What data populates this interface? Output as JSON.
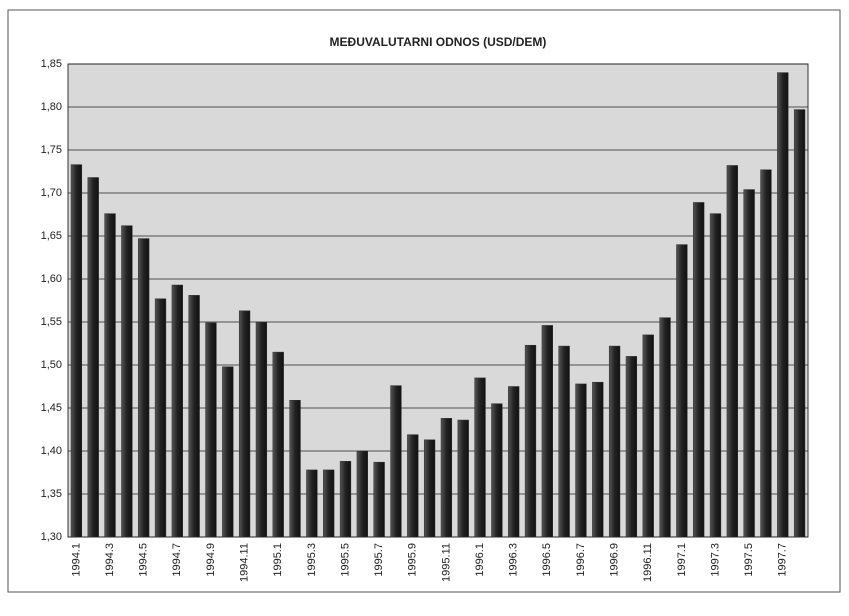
{
  "chart_data": {
    "type": "bar",
    "title": "MEĐUVALUTARNI ODNOS  (USD/DEM)",
    "categories": [
      "1994.1",
      null,
      "1994.3",
      null,
      "1994.5",
      null,
      "1994.7",
      null,
      "1994.9",
      null,
      "1994.11",
      null,
      "1995.1",
      null,
      "1995.3",
      null,
      "1995.5",
      null,
      "1995.7",
      null,
      "1995.9",
      null,
      "1995.11",
      null,
      "1996.1",
      null,
      "1996.3",
      null,
      "1996.5",
      null,
      "1996.7",
      null,
      "1996.9",
      null,
      "1996.11",
      null,
      "1997.1",
      null,
      "1997.3",
      null,
      "1997.5",
      null,
      "1997.7",
      null
    ],
    "values": [
      1.733,
      1.718,
      1.676,
      1.662,
      1.647,
      1.577,
      1.593,
      1.581,
      1.549,
      1.498,
      1.563,
      1.55,
      1.515,
      1.459,
      1.378,
      1.378,
      1.388,
      1.4,
      1.387,
      1.476,
      1.419,
      1.413,
      1.438,
      1.436,
      1.485,
      1.455,
      1.475,
      1.523,
      1.546,
      1.522,
      1.478,
      1.48,
      1.522,
      1.51,
      1.535,
      1.555,
      1.64,
      1.689,
      1.676,
      1.732,
      1.704,
      1.727,
      1.84,
      1.797
    ],
    "color": "#2e2e2e",
    "ylim": [
      1.3,
      1.85
    ],
    "yticks": [
      {
        "value": 1.3,
        "label": "1,30"
      },
      {
        "value": 1.35,
        "label": "1,35"
      },
      {
        "value": 1.4,
        "label": "1,40"
      },
      {
        "value": 1.45,
        "label": "1,45"
      },
      {
        "value": 1.5,
        "label": "1,50"
      },
      {
        "value": 1.55,
        "label": "1,55"
      },
      {
        "value": 1.6,
        "label": "1,60"
      },
      {
        "value": 1.65,
        "label": "1,65"
      },
      {
        "value": 1.7,
        "label": "1,70"
      },
      {
        "value": 1.75,
        "label": "1,75"
      },
      {
        "value": 1.8,
        "label": "1,80"
      },
      {
        "value": 1.85,
        "label": "1,85"
      }
    ],
    "grid": true
  }
}
